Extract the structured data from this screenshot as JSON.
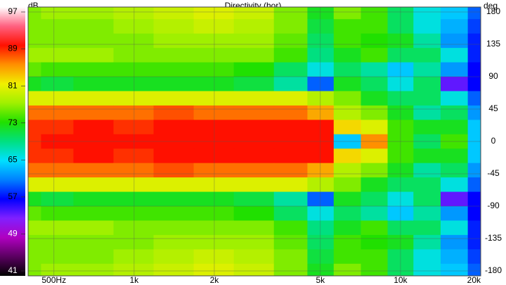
{
  "chart_data": {
    "type": "heatmap",
    "title": "Directivity (hor)",
    "colorbar_unit": "dB",
    "y_unit": "deg",
    "x": [
      400,
      500,
      700,
      1000,
      1400,
      2000,
      2800,
      4000,
      5000,
      6300,
      8000,
      10000,
      12500,
      16000,
      20000
    ],
    "y": [
      180,
      160,
      140,
      120,
      100,
      80,
      60,
      40,
      20,
      0,
      -20,
      -40,
      -60,
      -80,
      -100,
      -120,
      -140,
      -160,
      -180
    ],
    "z": [
      [
        76,
        77,
        77,
        78,
        79,
        80,
        79,
        76,
        72,
        76,
        74,
        70,
        66,
        64,
        60
      ],
      [
        76,
        76,
        76,
        77,
        78,
        79,
        78,
        76,
        71,
        74,
        74,
        70,
        66,
        63,
        59
      ],
      [
        76,
        76,
        76,
        76,
        77,
        77,
        77,
        75,
        70,
        74,
        73,
        72,
        68,
        62,
        58
      ],
      [
        77,
        77,
        77,
        76,
        76,
        76,
        76,
        74,
        69,
        72,
        74,
        70,
        70,
        66,
        58
      ],
      [
        75,
        74,
        74,
        74,
        74,
        74,
        73,
        70,
        66,
        70,
        68,
        64,
        68,
        62,
        57
      ],
      [
        72,
        71,
        72,
        72,
        72,
        72,
        71,
        68,
        60,
        72,
        70,
        66,
        70,
        54,
        57
      ],
      [
        80,
        80,
        80,
        80,
        80,
        80,
        80,
        80,
        78,
        76,
        72,
        70,
        70,
        66,
        60
      ],
      [
        86,
        86,
        86,
        86,
        87,
        86,
        86,
        86,
        84,
        78,
        76,
        72,
        68,
        70,
        62
      ],
      [
        88,
        88,
        89,
        88,
        89,
        89,
        89,
        89,
        89,
        82,
        80,
        74,
        72,
        72,
        64
      ],
      [
        88,
        89,
        89,
        89,
        89,
        89,
        89,
        89,
        89,
        64,
        85,
        74,
        70,
        74,
        64
      ],
      [
        88,
        88,
        89,
        88,
        89,
        89,
        89,
        89,
        89,
        82,
        80,
        74,
        72,
        72,
        64
      ],
      [
        86,
        86,
        86,
        86,
        87,
        86,
        86,
        86,
        84,
        78,
        76,
        72,
        68,
        70,
        62
      ],
      [
        80,
        80,
        80,
        80,
        80,
        80,
        80,
        80,
        78,
        76,
        72,
        70,
        70,
        66,
        60
      ],
      [
        72,
        71,
        72,
        72,
        72,
        72,
        71,
        68,
        60,
        72,
        70,
        66,
        70,
        54,
        57
      ],
      [
        75,
        74,
        74,
        74,
        74,
        74,
        73,
        70,
        66,
        70,
        68,
        64,
        68,
        62,
        57
      ],
      [
        77,
        77,
        77,
        76,
        76,
        76,
        76,
        74,
        69,
        72,
        74,
        70,
        70,
        66,
        58
      ],
      [
        76,
        76,
        76,
        76,
        77,
        77,
        77,
        75,
        70,
        74,
        73,
        72,
        68,
        62,
        58
      ],
      [
        76,
        76,
        76,
        77,
        78,
        79,
        78,
        76,
        71,
        74,
        74,
        70,
        66,
        63,
        59
      ],
      [
        76,
        77,
        77,
        78,
        79,
        80,
        79,
        76,
        72,
        76,
        74,
        70,
        66,
        64,
        60
      ]
    ],
    "xlim": [
      400,
      20000
    ],
    "log_x": true,
    "xticks": [
      {
        "value": 500,
        "label": "500Hz"
      },
      {
        "value": 1000,
        "label": "1k"
      },
      {
        "value": 2000,
        "label": "2k"
      },
      {
        "value": 5000,
        "label": "5k"
      },
      {
        "value": 10000,
        "label": "10k"
      },
      {
        "value": 20000,
        "label": "20k"
      }
    ],
    "ylim": [
      -180,
      180
    ],
    "yticks": [
      180,
      135,
      90,
      45,
      0,
      -45,
      -90,
      -135,
      -180
    ],
    "colorlim": [
      41,
      97
    ],
    "colorticks": [
      97,
      89,
      81,
      73,
      65,
      57,
      49,
      41
    ],
    "colorscale": [
      "#000000",
      "#5a0060",
      "#b000c0",
      "#8020ff",
      "#0000ff",
      "#0080ff",
      "#00e0ff",
      "#00e080",
      "#20e000",
      "#a0f000",
      "#f0f000",
      "#ff9000",
      "#ff1000",
      "#ff6080",
      "#ffffff"
    ],
    "grid": true
  }
}
